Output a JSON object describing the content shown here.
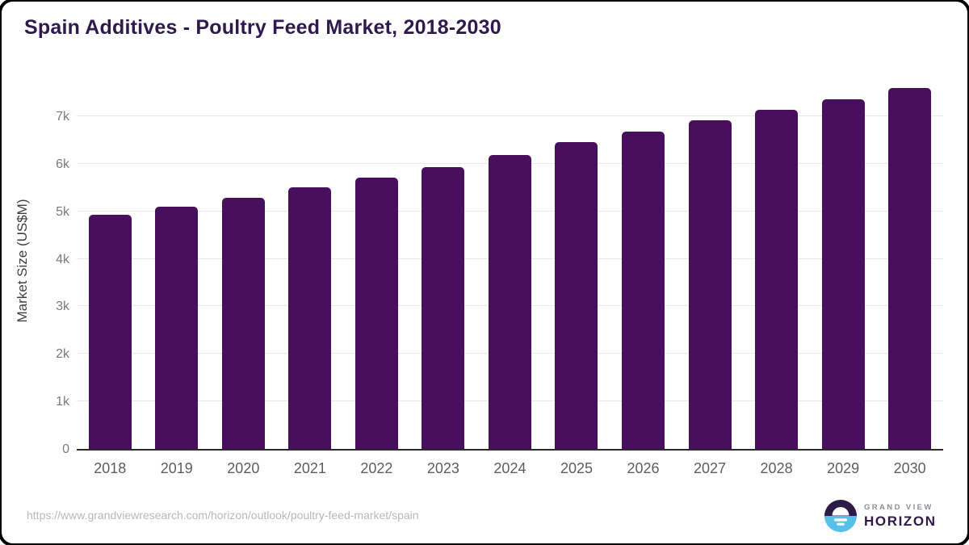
{
  "title": "Spain Additives - Poultry Feed Market, 2018-2030",
  "chart_data": {
    "type": "bar",
    "title": "Spain Additives - Poultry Feed Market, 2018-2030",
    "categories": [
      "2018",
      "2019",
      "2020",
      "2021",
      "2022",
      "2023",
      "2024",
      "2025",
      "2026",
      "2027",
      "2028",
      "2029",
      "2030"
    ],
    "values": [
      4930,
      5090,
      5280,
      5500,
      5710,
      5930,
      6180,
      6450,
      6670,
      6910,
      7130,
      7350,
      7590
    ],
    "xlabel": "",
    "ylabel": "Market Size (US$M)",
    "ylim": [
      0,
      7600
    ],
    "ytick_values": [
      0,
      1000,
      2000,
      3000,
      4000,
      5000,
      6000,
      7000
    ],
    "ytick_labels": [
      "0",
      "1k",
      "2k",
      "3k",
      "4k",
      "5k",
      "6k",
      "7k"
    ],
    "grid": true,
    "legend": "none",
    "bar_color": "#490f5f"
  },
  "colors": {
    "bar": "#490f5f",
    "title": "#2f1a4d",
    "axis_line": "#2b2b2b",
    "gridline": "#e8e8e8",
    "logo_purple": "#2e1a47",
    "logo_blue": "#56c0e8"
  },
  "footer": {
    "source_url": "https://www.grandviewresearch.com/horizon/outlook/poultry-feed-market/spain",
    "logo": {
      "line1": "GRAND VIEW",
      "line2": "HORIZON"
    }
  }
}
